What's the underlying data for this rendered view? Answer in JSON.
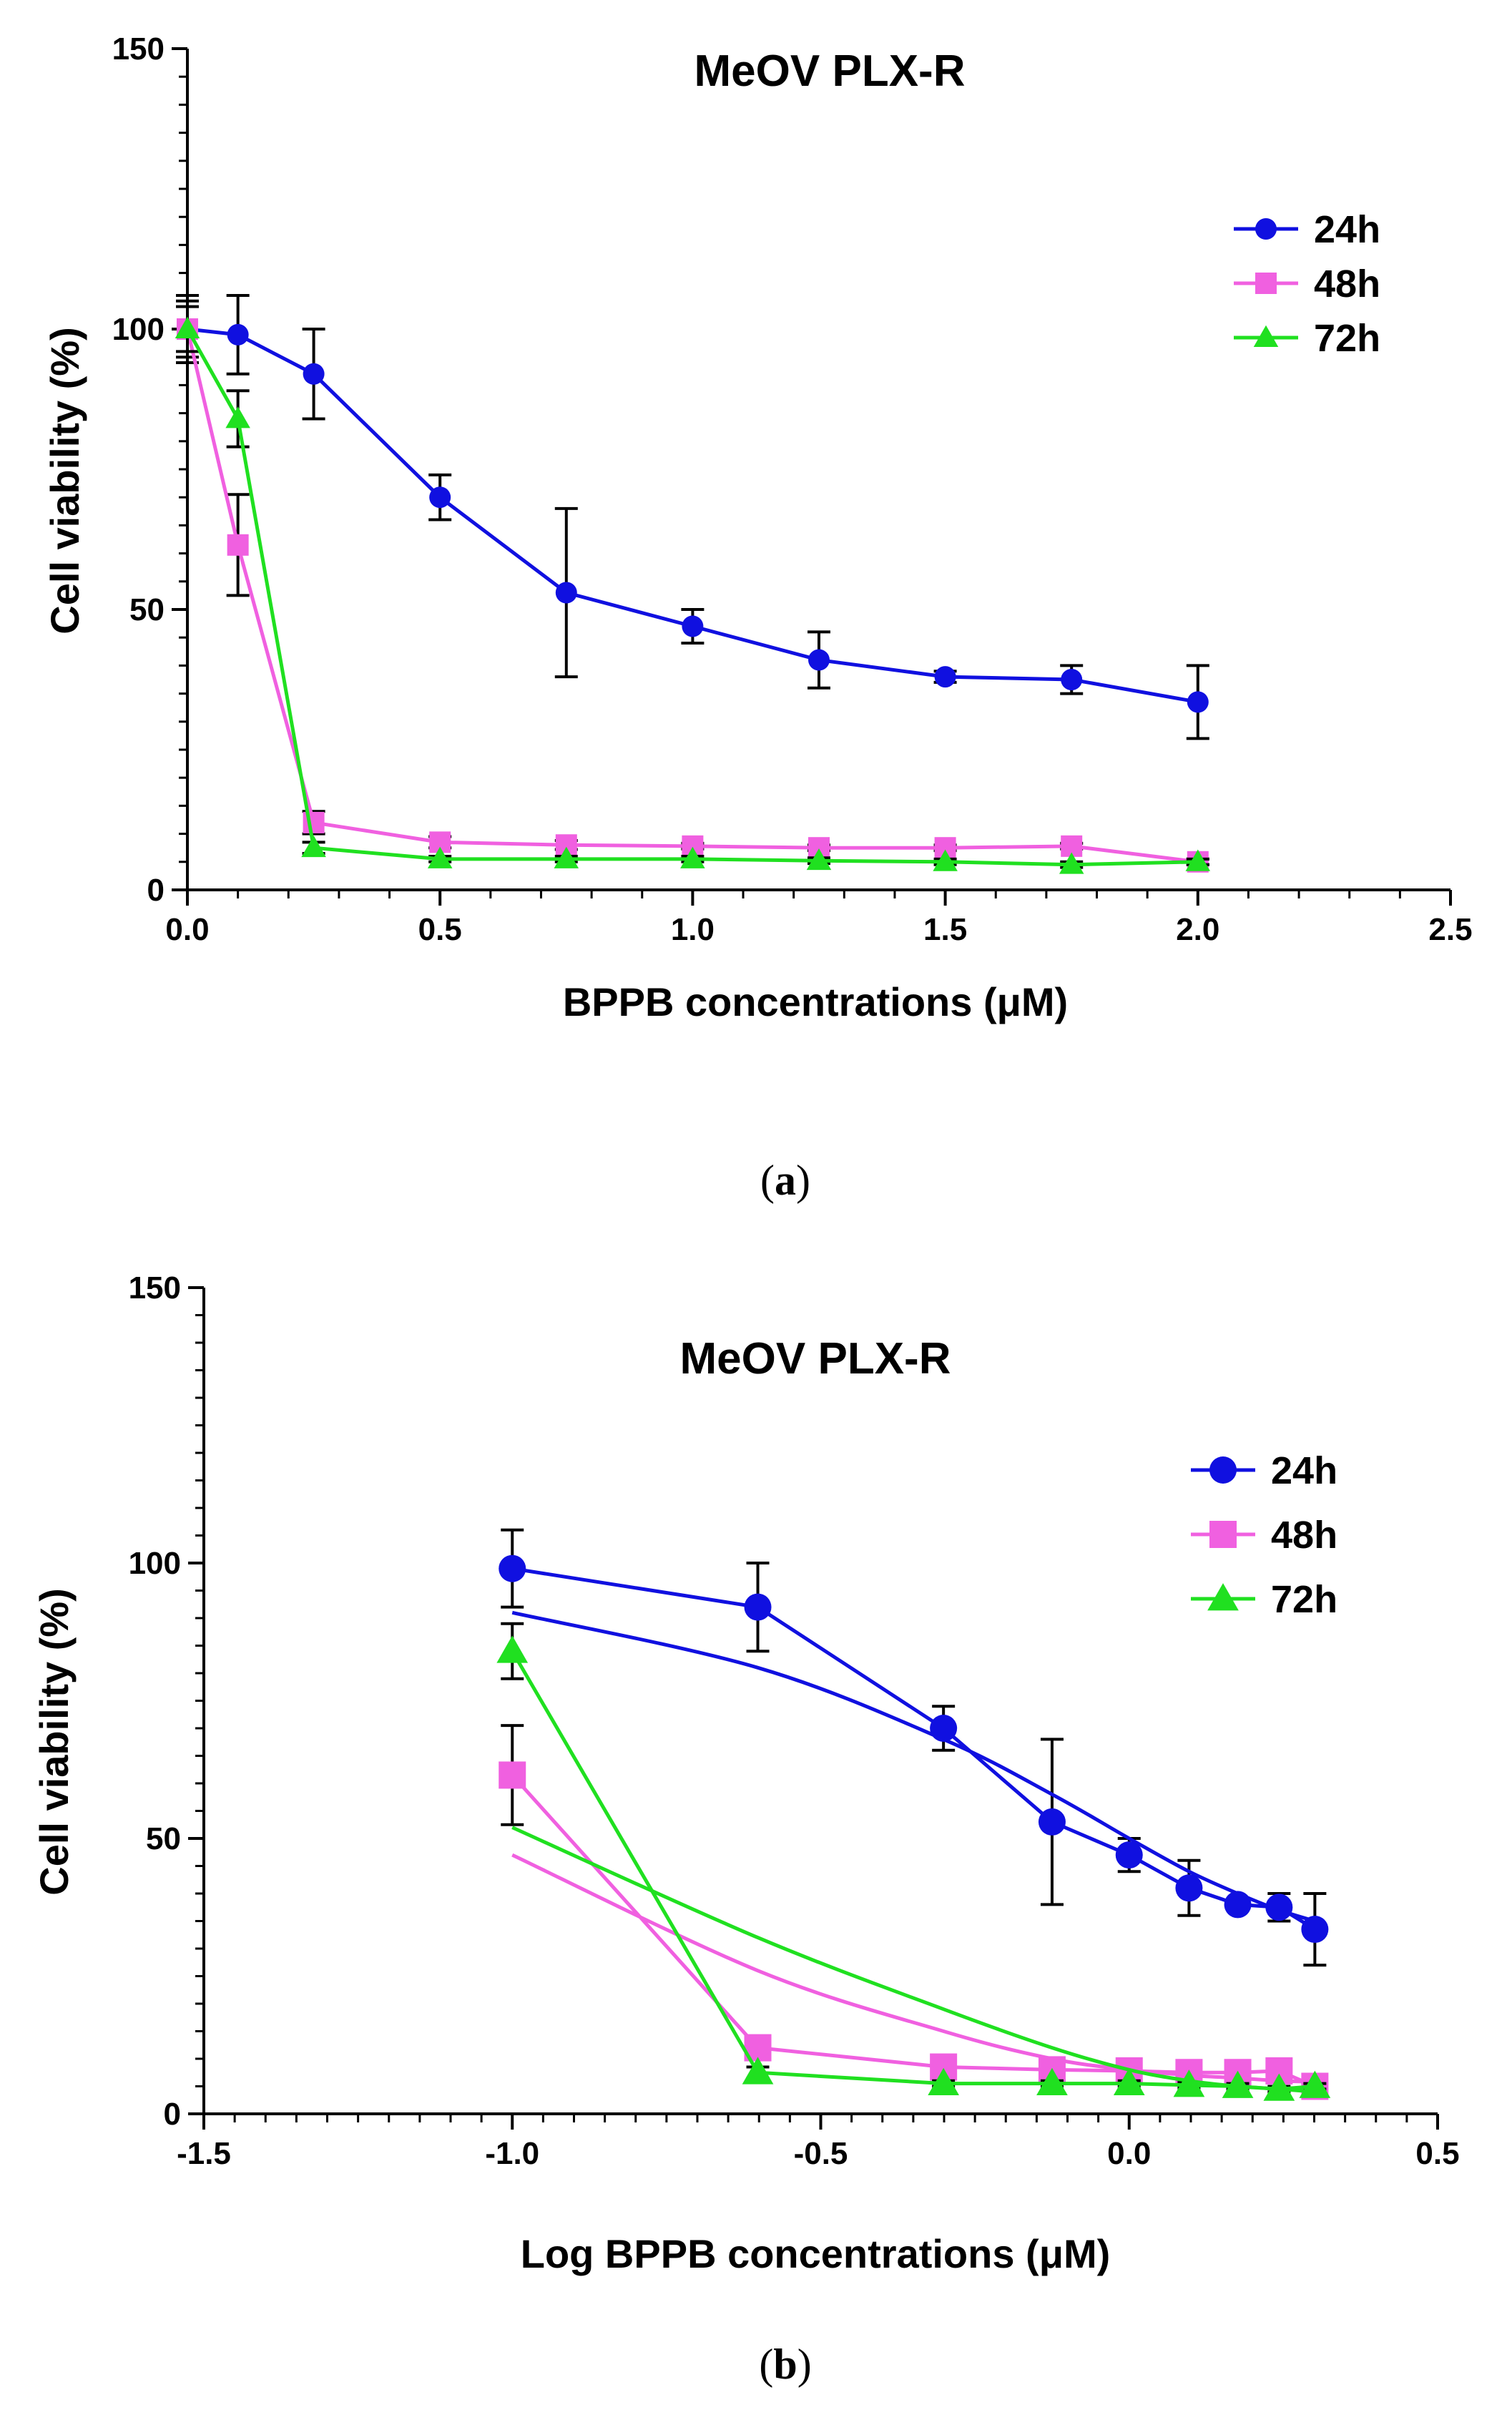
{
  "figure": {
    "panel_a_label": {
      "open": "(",
      "letter": "a",
      "close": ")"
    },
    "panel_b_label": {
      "open": "(",
      "letter": "b",
      "close": ")"
    }
  },
  "chart_data": [
    {
      "id": "a",
      "type": "line",
      "title": "MeOV PLX-R",
      "xlabel": "BPPB concentrations (μM)",
      "ylabel": "Cell viability (%)",
      "xlim": [
        0,
        2.5
      ],
      "ylim": [
        0,
        150
      ],
      "xticks": [
        0.0,
        0.5,
        1.0,
        1.5,
        2.0,
        2.5
      ],
      "xtick_labels": [
        "0.0",
        "0.5",
        "1.0",
        "1.5",
        "2.0",
        "2.5"
      ],
      "yticks": [
        0,
        50,
        100,
        150
      ],
      "ytick_labels": [
        "0",
        "50",
        "100",
        "150"
      ],
      "grid": false,
      "legend_position": "top-right",
      "x": [
        0,
        0.1,
        0.25,
        0.5,
        0.75,
        1.0,
        1.25,
        1.5,
        1.75,
        2.0
      ],
      "series": [
        {
          "name": "24h",
          "color": "#1010e0",
          "marker": "circle",
          "values": [
            100,
            99,
            92,
            70,
            53,
            47,
            41,
            38,
            37.5,
            33.5
          ],
          "errors": [
            6,
            7,
            8,
            4,
            15,
            3,
            5,
            1,
            2.5,
            6.5
          ]
        },
        {
          "name": "48h",
          "color": "#f060e0",
          "marker": "square",
          "values": [
            100,
            61.5,
            12,
            8.5,
            8,
            7.8,
            7.5,
            7.5,
            7.8,
            5
          ],
          "errors": [
            5,
            9,
            2,
            1,
            0.8,
            0.5,
            0.5,
            0.5,
            0.5,
            0.5
          ]
        },
        {
          "name": "72h",
          "color": "#20e020",
          "marker": "triangle",
          "values": [
            100,
            84,
            7.5,
            5.5,
            5.5,
            5.5,
            5.2,
            5,
            4.5,
            5
          ],
          "errors": [
            4,
            5,
            1,
            0.5,
            0.5,
            0.5,
            0.5,
            0.5,
            0.5,
            0.5
          ]
        }
      ]
    },
    {
      "id": "b",
      "type": "line",
      "title": "MeOV PLX-R",
      "xlabel": "Log BPPB concentrations (μM)",
      "ylabel": "Cell viability (%)",
      "xlim": [
        -1.5,
        0.5
      ],
      "ylim": [
        0,
        150
      ],
      "xticks": [
        -1.5,
        -1.0,
        -0.5,
        0.0,
        0.5
      ],
      "xtick_labels": [
        "-1.5",
        "-1.0",
        "-0.5",
        "0.0",
        "0.5"
      ],
      "yticks": [
        0,
        50,
        100,
        150
      ],
      "ytick_labels": [
        "0",
        "50",
        "100",
        "150"
      ],
      "grid": false,
      "legend_position": "top-right",
      "x": [
        -1.0,
        -0.602,
        -0.301,
        -0.125,
        0.0,
        0.097,
        0.176,
        0.243,
        0.301
      ],
      "series": [
        {
          "name": "24h",
          "color": "#1010e0",
          "marker": "circle",
          "values": [
            99,
            92,
            70,
            53,
            47,
            41,
            38,
            37.5,
            33.5
          ],
          "errors": [
            7,
            8,
            4,
            15,
            3,
            5,
            1,
            2.5,
            6.5
          ],
          "fit": [
            91,
            81,
            68,
            58,
            50,
            44,
            40,
            37,
            35
          ]
        },
        {
          "name": "48h",
          "color": "#f060e0",
          "marker": "square",
          "values": [
            61.5,
            12,
            8.5,
            8,
            7.8,
            7.5,
            7.5,
            7.8,
            5
          ],
          "errors": [
            9,
            2,
            1,
            0.8,
            0.5,
            0.5,
            0.5,
            0.5,
            0.5
          ],
          "fit": [
            47,
            26,
            15,
            10,
            8,
            7,
            6.5,
            6,
            5.8
          ]
        },
        {
          "name": "72h",
          "color": "#20e020",
          "marker": "triangle",
          "values": [
            84,
            7.5,
            5.5,
            5.5,
            5.5,
            5.2,
            5,
            4.5,
            5
          ],
          "errors": [
            5,
            1,
            0.5,
            0.5,
            0.5,
            0.5,
            0.5,
            0.5,
            0.5
          ],
          "fit": [
            52,
            32,
            19,
            12,
            8,
            6,
            5,
            4.5,
            4
          ]
        }
      ]
    }
  ]
}
